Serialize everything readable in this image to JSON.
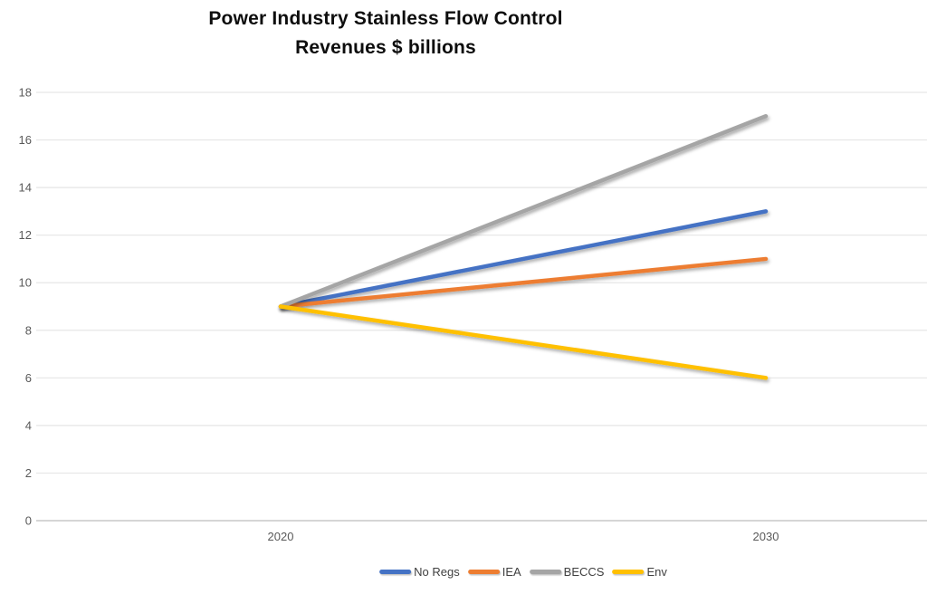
{
  "title": {
    "line1": "Power Industry Stainless Flow Control",
    "line2": "Revenues $ billions"
  },
  "chart_data": {
    "type": "line",
    "title": "Power Industry Stainless Flow Control Revenues $ billions",
    "x": [
      "2020",
      "2030"
    ],
    "series": [
      {
        "name": "No Regs",
        "color": "#4472C4",
        "values": [
          9,
          13
        ]
      },
      {
        "name": "IEA",
        "color": "#ED7D31",
        "values": [
          9,
          11
        ]
      },
      {
        "name": "BECCS",
        "color": "#A5A5A5",
        "values": [
          9,
          17
        ]
      },
      {
        "name": "Env",
        "color": "#FFC000",
        "values": [
          9,
          6
        ]
      }
    ],
    "xlabel": "",
    "ylabel": "",
    "ylim": [
      0,
      18
    ],
    "ytick_step": 2,
    "grid": true,
    "legend_position": "bottom"
  },
  "colors": {
    "background": "#ffffff",
    "gridline": "#e6e6e6",
    "axis_line": "#d6d6d6",
    "tick_label": "#595959",
    "legend_label": "#404040",
    "title_text": "#0d0d0d"
  }
}
